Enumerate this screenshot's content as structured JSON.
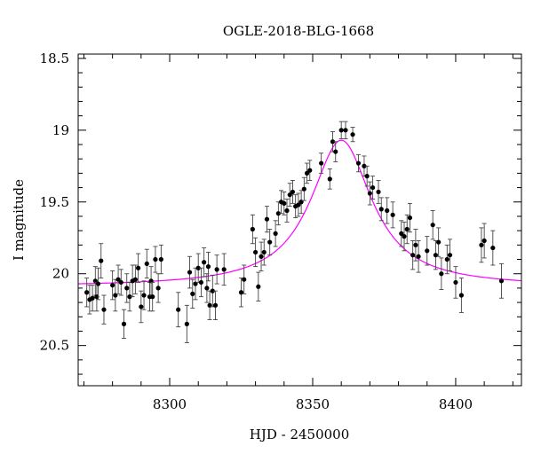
{
  "chart_data": {
    "type": "scatter",
    "title": "OGLE-2018-BLG-1668",
    "xlabel": "HJD - 2450000",
    "ylabel": "I magnitude",
    "xlim": [
      8268,
      8423
    ],
    "ylim": [
      20.78,
      18.47
    ],
    "y_inverted": true,
    "xticks_major": [
      8300,
      8350,
      8400
    ],
    "xtick_labels": [
      "8300",
      "8350",
      "8400"
    ],
    "yticks_major": [
      18.5,
      19,
      19.5,
      20,
      20.5
    ],
    "ytick_labels": [
      "18.5",
      "19",
      "19.5",
      "20",
      "20.5"
    ],
    "grid": false,
    "series": [
      {
        "kind": "points_with_errorbars",
        "points": [
          [
            8271,
            20.13,
            0.1
          ],
          [
            8272,
            20.18,
            0.1
          ],
          [
            8273,
            20.17,
            0.09
          ],
          [
            8274,
            20.05,
            0.1
          ],
          [
            8274.5,
            20.16,
            0.1
          ],
          [
            8275,
            20.07,
            0.11
          ],
          [
            8276,
            19.91,
            0.12
          ],
          [
            8277,
            20.25,
            0.1
          ],
          [
            8280,
            20.08,
            0.1
          ],
          [
            8281,
            20.15,
            0.11
          ],
          [
            8282,
            20.04,
            0.1
          ],
          [
            8283,
            20.06,
            0.09
          ],
          [
            8284,
            20.35,
            0.1
          ],
          [
            8285,
            20.1,
            0.1
          ],
          [
            8286,
            20.16,
            0.1
          ],
          [
            8287,
            20.05,
            0.11
          ],
          [
            8288,
            20.04,
            0.1
          ],
          [
            8289,
            19.96,
            0.1
          ],
          [
            8290,
            20.23,
            0.11
          ],
          [
            8291,
            20.15,
            0.1
          ],
          [
            8292,
            19.93,
            0.1
          ],
          [
            8293,
            20.16,
            0.1
          ],
          [
            8293.5,
            20.05,
            0.1
          ],
          [
            8294,
            20.16,
            0.1
          ],
          [
            8295,
            19.9,
            0.09
          ],
          [
            8296,
            20.1,
            0.1
          ],
          [
            8297,
            19.9,
            0.1
          ],
          [
            8303,
            20.25,
            0.12
          ],
          [
            8306,
            20.35,
            0.13
          ],
          [
            8307,
            19.99,
            0.11
          ],
          [
            8308,
            20.14,
            0.1
          ],
          [
            8309,
            20.07,
            0.11
          ],
          [
            8310,
            19.96,
            0.1
          ],
          [
            8311,
            20.06,
            0.1
          ],
          [
            8312,
            19.92,
            0.1
          ],
          [
            8313,
            20.1,
            0.1
          ],
          [
            8313.5,
            19.95,
            0.1
          ],
          [
            8314,
            20.22,
            0.1
          ],
          [
            8315,
            20.12,
            0.11
          ],
          [
            8316,
            20.22,
            0.1
          ],
          [
            8316.5,
            19.97,
            0.1
          ],
          [
            8319,
            19.97,
            0.11
          ],
          [
            8325,
            20.13,
            0.1
          ],
          [
            8326,
            20.04,
            0.1
          ],
          [
            8329,
            19.69,
            0.1
          ],
          [
            8330,
            19.85,
            0.1
          ],
          [
            8331,
            20.09,
            0.1
          ],
          [
            8332,
            19.88,
            0.1
          ],
          [
            8333,
            19.85,
            0.09
          ],
          [
            8334,
            19.62,
            0.09
          ],
          [
            8335,
            19.78,
            0.09
          ],
          [
            8337,
            19.72,
            0.09
          ],
          [
            8338,
            19.58,
            0.08
          ],
          [
            8339,
            19.5,
            0.08
          ],
          [
            8340,
            19.51,
            0.08
          ],
          [
            8341,
            19.56,
            0.08
          ],
          [
            8342,
            19.45,
            0.08
          ],
          [
            8343,
            19.43,
            0.08
          ],
          [
            8344,
            19.53,
            0.08
          ],
          [
            8345,
            19.52,
            0.08
          ],
          [
            8346,
            19.5,
            0.08
          ],
          [
            8347,
            19.41,
            0.08
          ],
          [
            8348,
            19.3,
            0.07
          ],
          [
            8349,
            19.28,
            0.07
          ],
          [
            8353,
            19.23,
            0.07
          ],
          [
            8356,
            19.34,
            0.07
          ],
          [
            8357,
            19.08,
            0.07
          ],
          [
            8358,
            19.15,
            0.07
          ],
          [
            8360,
            19.0,
            0.06
          ],
          [
            8361.5,
            19.0,
            0.06
          ],
          [
            8364,
            19.03,
            0.05
          ],
          [
            8366,
            19.23,
            0.06
          ],
          [
            8368,
            19.25,
            0.07
          ],
          [
            8369,
            19.32,
            0.07
          ],
          [
            8370,
            19.44,
            0.08
          ],
          [
            8371,
            19.4,
            0.08
          ],
          [
            8373,
            19.43,
            0.08
          ],
          [
            8374,
            19.55,
            0.08
          ],
          [
            8376,
            19.56,
            0.09
          ],
          [
            8378,
            19.59,
            0.09
          ],
          [
            8381,
            19.72,
            0.09
          ],
          [
            8382,
            19.74,
            0.1
          ],
          [
            8383,
            19.69,
            0.1
          ],
          [
            8384,
            19.61,
            0.1
          ],
          [
            8385,
            19.87,
            0.1
          ],
          [
            8386,
            19.8,
            0.11
          ],
          [
            8387,
            19.88,
            0.11
          ],
          [
            8390,
            19.84,
            0.1
          ],
          [
            8392,
            19.66,
            0.1
          ],
          [
            8393,
            19.87,
            0.1
          ],
          [
            8394,
            19.78,
            0.1
          ],
          [
            8395,
            20.0,
            0.11
          ],
          [
            8397,
            19.9,
            0.1
          ],
          [
            8398,
            19.87,
            0.11
          ],
          [
            8400,
            20.06,
            0.11
          ],
          [
            8402,
            20.15,
            0.12
          ],
          [
            8409,
            19.8,
            0.12
          ],
          [
            8410,
            19.77,
            0.12
          ],
          [
            8413,
            19.82,
            0.12
          ],
          [
            8416,
            20.05,
            0.12
          ]
        ]
      },
      {
        "kind": "model_curve",
        "color": "#ff00ff",
        "baseline": 20.09,
        "peak": 19.07,
        "t0": 8360,
        "width": 13
      }
    ]
  }
}
